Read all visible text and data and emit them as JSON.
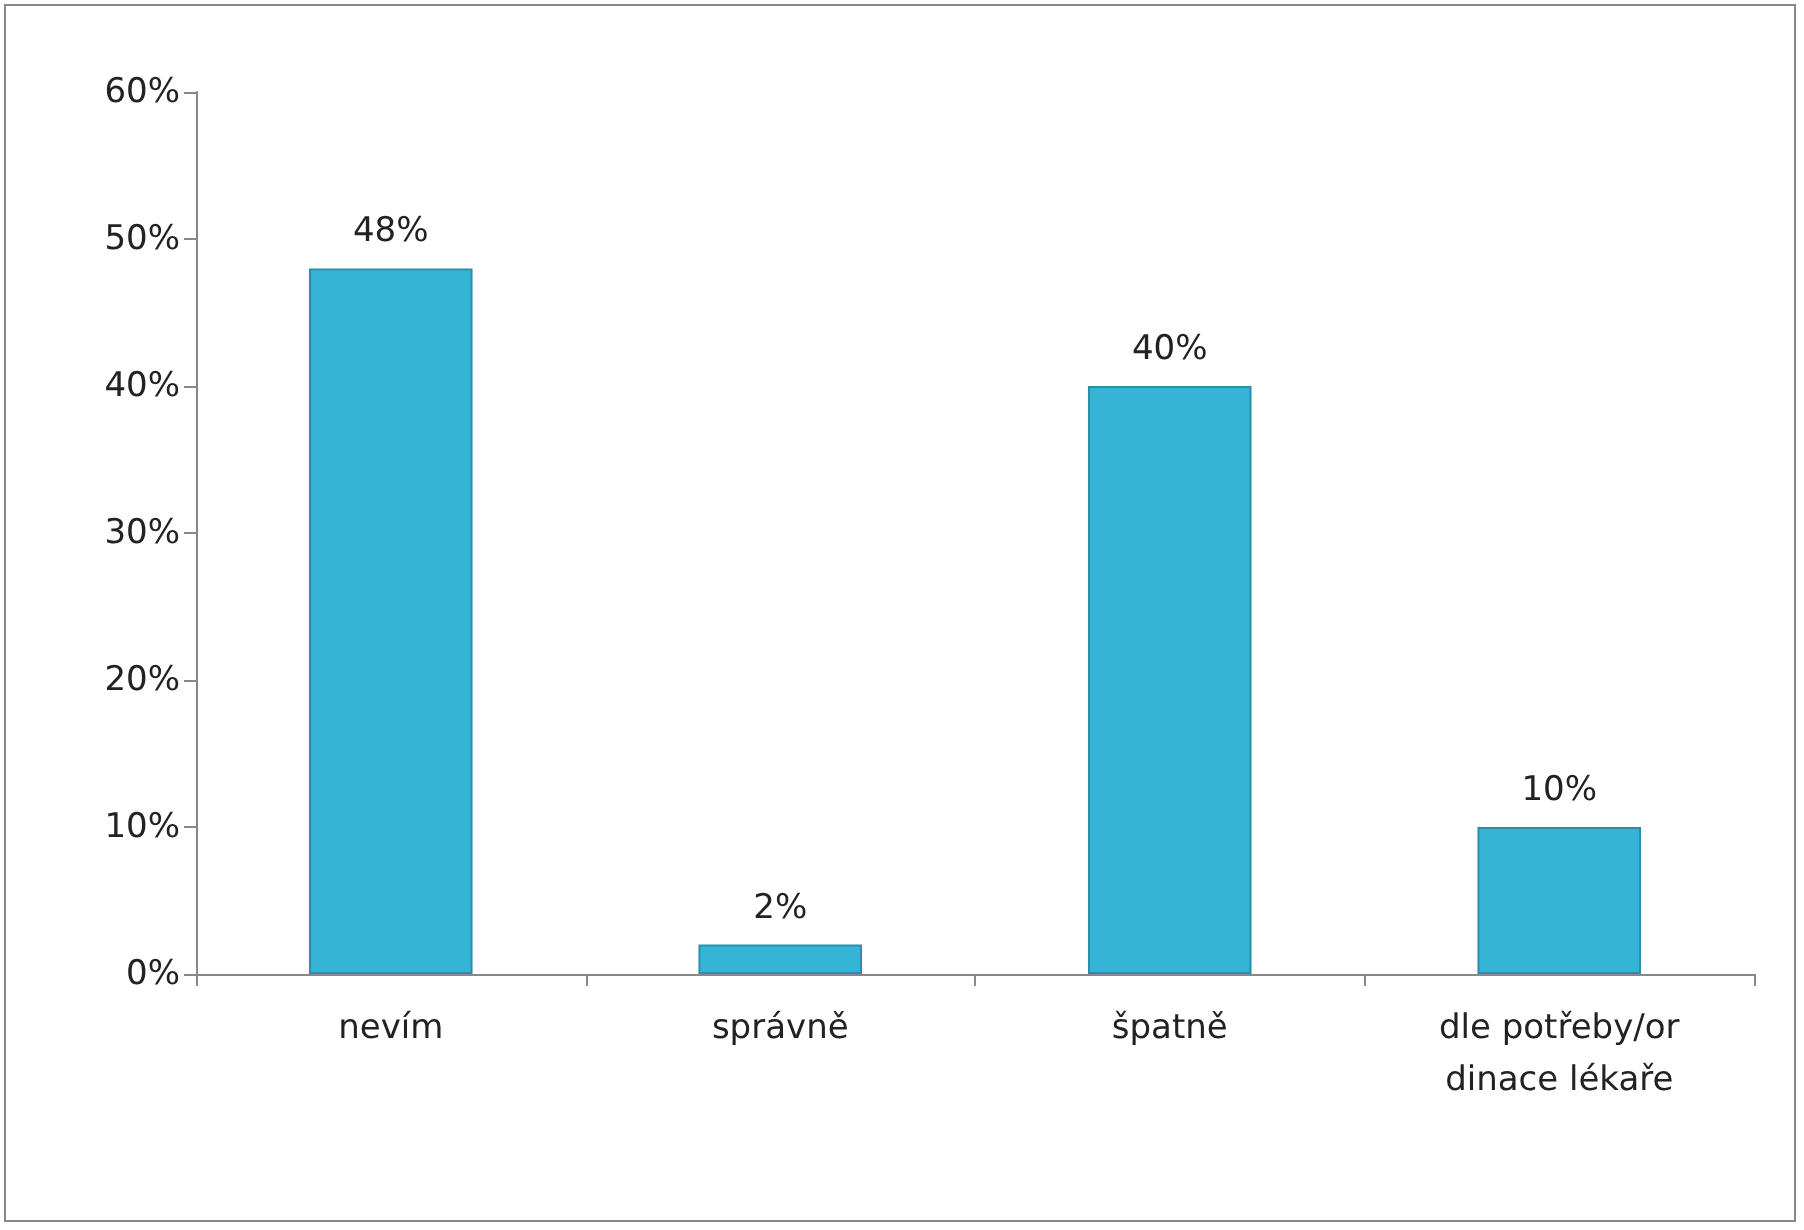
{
  "chart_data": {
    "type": "bar",
    "categories": [
      "nevím",
      "správně",
      "špatně",
      "dle potřeby/ordinace lékaře"
    ],
    "values": [
      48,
      2,
      40,
      10
    ],
    "color": "#35b4d6",
    "value_labels": [
      "48%",
      "2%",
      "40%",
      "10%"
    ],
    "ylim": [
      0,
      60
    ],
    "yticks": [
      {
        "value": 0,
        "label": "0%"
      },
      {
        "value": 10,
        "label": "10%"
      },
      {
        "value": 20,
        "label": "20%"
      },
      {
        "value": 30,
        "label": "30%"
      },
      {
        "value": 40,
        "label": "40%"
      },
      {
        "value": 50,
        "label": "50%"
      },
      {
        "value": 60,
        "label": "60%"
      }
    ],
    "grid": false
  }
}
